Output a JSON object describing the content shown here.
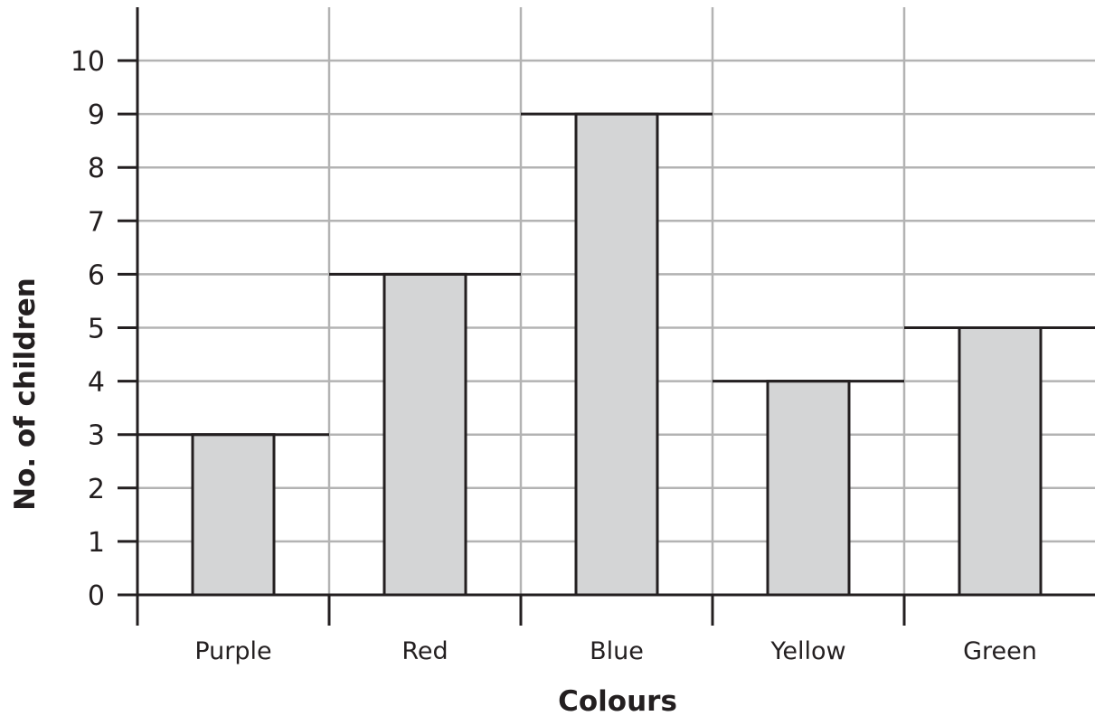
{
  "chart_data": {
    "type": "bar",
    "categories": [
      "Purple",
      "Red",
      "Blue",
      "Yellow",
      "Green"
    ],
    "values": [
      3,
      6,
      9,
      4,
      5
    ],
    "xlabel": "Colours",
    "ylabel": "No. of children",
    "ylim": [
      0,
      10
    ],
    "yticks": [
      0,
      1,
      2,
      3,
      4,
      5,
      6,
      7,
      8,
      9,
      10
    ],
    "grid": true,
    "colors": {
      "bar_fill": "#d4d5d6",
      "bar_stroke": "#231f20",
      "grid": "#b3b3b3"
    }
  }
}
